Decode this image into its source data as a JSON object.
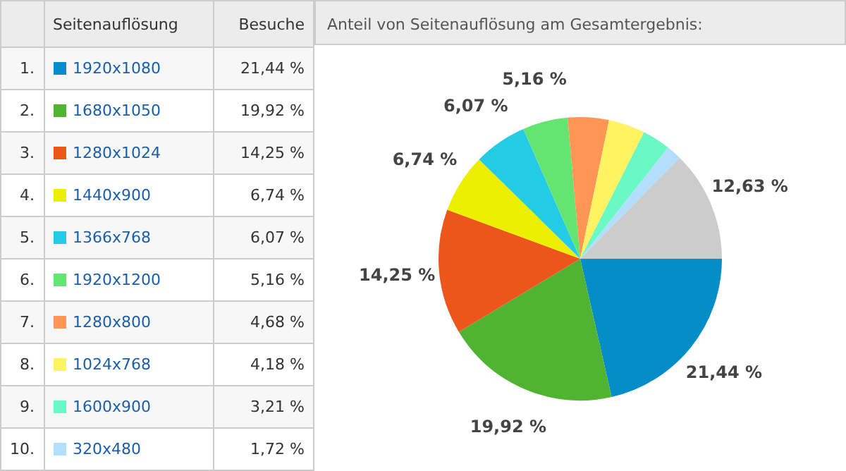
{
  "chart_data": {
    "type": "pie",
    "title": "Anteil von Seitenauflösung am Gesamtergebnis:",
    "legend_title": "Seitenauflösung",
    "ylabel": "Besuche",
    "categories": [
      "1920x1080",
      "1680x1050",
      "1280x1024",
      "1440x900",
      "1366x768",
      "1920x1200",
      "1280x800",
      "1024x768",
      "1600x900",
      "320x480",
      null
    ],
    "values": [
      21.44,
      19.92,
      14.25,
      6.74,
      6.07,
      5.16,
      4.68,
      4.18,
      3.21,
      1.72,
      12.63
    ],
    "colors": [
      "#058dc7",
      "#50b432",
      "#ed561b",
      "#edef00",
      "#24cbe5",
      "#64e572",
      "#ff9655",
      "#fff263",
      "#6af9c4",
      "#b2deff",
      "#cccccc"
    ],
    "value_labels": [
      "21,44 %",
      "19,92 %",
      "14,25 %",
      "6,74 %",
      "6,07 %",
      "5,16 %",
      "4,68 %",
      "4,18 %",
      "3,21 %",
      "1,72 %",
      "12,63 %"
    ],
    "annotations": [
      "1.",
      "2.",
      "3.",
      "4.",
      "5.",
      "6.",
      "7.",
      "8.",
      "9.",
      "10."
    ],
    "legend": "left"
  }
}
